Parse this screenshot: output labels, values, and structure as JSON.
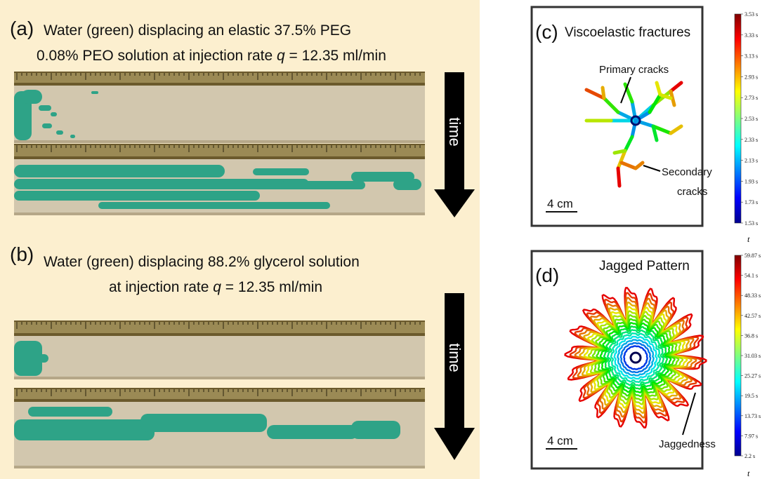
{
  "panel_a": {
    "label": "(a)",
    "caption_line1": "Water (green) displacing an elastic 37.5% PEG",
    "caption_line2_start": "0.08% PEO solution at injection rate ",
    "caption_line2_symbol": "q",
    "caption_line2_end": " = 12.35 ml/min",
    "arrow_label": "time"
  },
  "panel_b": {
    "label": "(b)",
    "caption_line1": "Water (green) displacing 88.2% glycerol solution",
    "caption_line2_start": "at injection rate ",
    "caption_line2_symbol": "q",
    "caption_line2_end": " = 12.35 ml/min",
    "arrow_label": "time"
  },
  "panel_c": {
    "label": "(c)",
    "title": "Viscoelastic fractures",
    "annotation_primary": "Primary cracks",
    "annotation_secondary_line1": "Secondary",
    "annotation_secondary_line2": "cracks",
    "scale_bar": "4 cm",
    "colorbar_labels": [
      "3.53 s",
      "3.33 s",
      "3.13 s",
      "2.93 s",
      "2.73 s",
      "2.53 s",
      "2.33 s",
      "2.13 s",
      "1.93 s",
      "1.73 s",
      "1.53 s"
    ],
    "colorbar_title": "t"
  },
  "panel_d": {
    "label": "(d)",
    "title": "Jagged Pattern",
    "annotation": "Jaggedness",
    "scale_bar": "4 cm",
    "colorbar_labels": [
      "59.87 s",
      "54.1 s",
      "48.33 s",
      "42.57 s",
      "36.8 s",
      "31.03 s",
      "25.27 s",
      "19.5 s",
      "13.73 s",
      "7.97 s",
      "2.2 s"
    ],
    "colorbar_title": "t"
  }
}
